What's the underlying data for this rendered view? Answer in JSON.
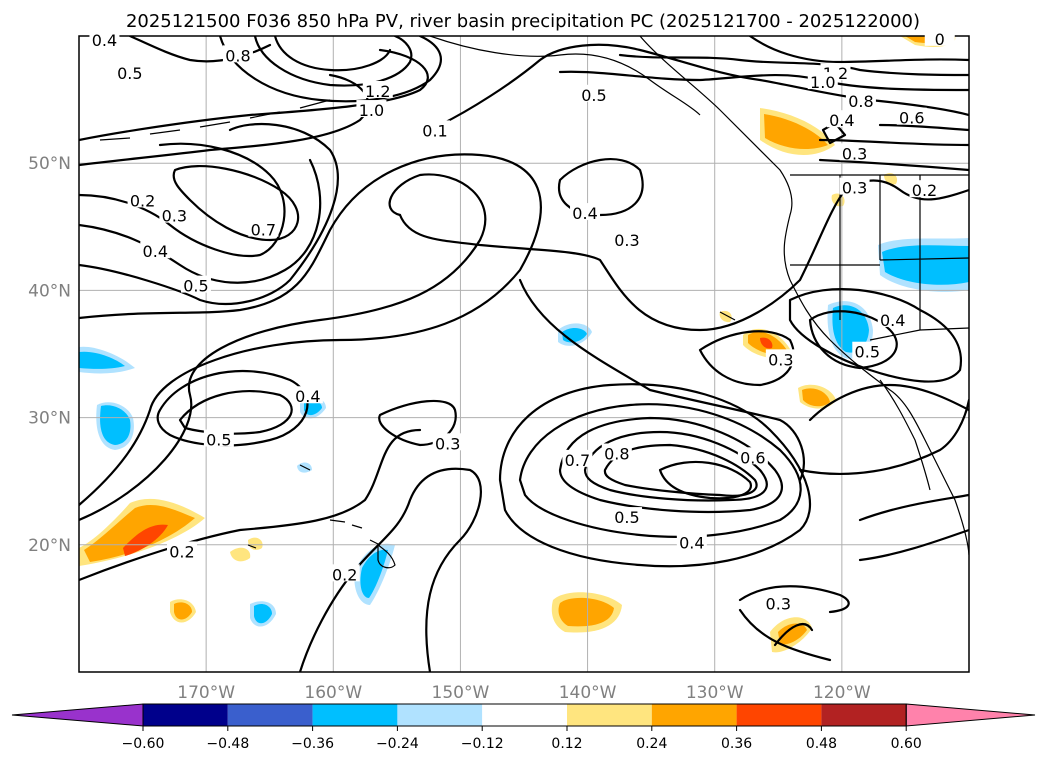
{
  "title": "2025121500 F036 850 hPa PV, river basin precipitation PC (2025121700 - 2025122000)",
  "map": {
    "lon_range": [
      -180,
      -110
    ],
    "lat_range": [
      10,
      60
    ],
    "lat_ticks": [
      {
        "lat": 50,
        "label": "50°N"
      },
      {
        "lat": 40,
        "label": "40°N"
      },
      {
        "lat": 30,
        "label": "30°N"
      },
      {
        "lat": 20,
        "label": "20°N"
      }
    ],
    "lon_ticks": [
      {
        "lon": -170,
        "label": "170°W"
      },
      {
        "lon": -160,
        "label": "160°W"
      },
      {
        "lon": -150,
        "label": "150°W"
      },
      {
        "lon": -140,
        "label": "140°W"
      },
      {
        "lon": -130,
        "label": "130°W"
      },
      {
        "lon": -120,
        "label": "120°W"
      }
    ]
  },
  "contour_labels": [
    {
      "text": "0.4",
      "lon": -178,
      "lat": 59.6
    },
    {
      "text": "0.5",
      "lon": -176,
      "lat": 57.0
    },
    {
      "text": "0.8",
      "lon": -167.5,
      "lat": 58.4
    },
    {
      "text": "1.2",
      "lon": -156.5,
      "lat": 55.6
    },
    {
      "text": "1.0",
      "lon": -157,
      "lat": 54.1
    },
    {
      "text": "0.1",
      "lon": -152,
      "lat": 52.5
    },
    {
      "text": "0.5",
      "lon": -139.5,
      "lat": 55.3
    },
    {
      "text": "1.2",
      "lon": -120.5,
      "lat": 57.0
    },
    {
      "text": "1.0",
      "lon": -121.5,
      "lat": 56.3
    },
    {
      "text": "0.8",
      "lon": -118.5,
      "lat": 54.8
    },
    {
      "text": "0.4",
      "lon": -120,
      "lat": 53.3
    },
    {
      "text": "0.6",
      "lon": -114.5,
      "lat": 53.5
    },
    {
      "text": "0.3",
      "lon": -119,
      "lat": 50.7
    },
    {
      "text": "0.3",
      "lon": -119,
      "lat": 48.0
    },
    {
      "text": "0.2",
      "lon": -113.5,
      "lat": 47.8
    },
    {
      "text": "0.2",
      "lon": -175,
      "lat": 47.0
    },
    {
      "text": "0.3",
      "lon": -172.5,
      "lat": 45.8
    },
    {
      "text": "0.7",
      "lon": -165.5,
      "lat": 44.7
    },
    {
      "text": "0.4",
      "lon": -140.2,
      "lat": 46.0
    },
    {
      "text": "0.3",
      "lon": -136.9,
      "lat": 43.9
    },
    {
      "text": "0.4",
      "lon": -174,
      "lat": 43.0
    },
    {
      "text": "0.5",
      "lon": -170.8,
      "lat": 40.3
    },
    {
      "text": "0.4",
      "lon": -116,
      "lat": 37.6
    },
    {
      "text": "0.5",
      "lon": -118,
      "lat": 35.1
    },
    {
      "text": "0.3",
      "lon": -124.8,
      "lat": 34.5
    },
    {
      "text": "0.4",
      "lon": -162,
      "lat": 31.6
    },
    {
      "text": "0.5",
      "lon": -169,
      "lat": 28.2
    },
    {
      "text": "0.3",
      "lon": -151,
      "lat": 27.9
    },
    {
      "text": "0.7",
      "lon": -140.8,
      "lat": 26.6
    },
    {
      "text": "0.8",
      "lon": -137.7,
      "lat": 27.1
    },
    {
      "text": "0.6",
      "lon": -127,
      "lat": 26.8
    },
    {
      "text": "0.5",
      "lon": -136.9,
      "lat": 22.1
    },
    {
      "text": "0.4",
      "lon": -131.8,
      "lat": 20.1
    },
    {
      "text": "0.2",
      "lon": -171.9,
      "lat": 19.4
    },
    {
      "text": "0.2",
      "lon": -159.1,
      "lat": 17.6
    },
    {
      "text": "0.3",
      "lon": -125,
      "lat": 15.3
    },
    {
      "text": "0",
      "lon": -112.3,
      "lat": 59.7
    }
  ],
  "colorbar": {
    "ticks": [
      "−0.60",
      "−0.48",
      "−0.36",
      "−0.24",
      "−0.12",
      "0.12",
      "0.24",
      "0.36",
      "0.48",
      "0.60"
    ],
    "colors": [
      "#9932cc",
      "#00008b",
      "#3a5fcd",
      "#00bfff",
      "#b0e2ff",
      "#ffffff",
      "#ffe57f",
      "#ffa500",
      "#ff4500",
      "#b22222",
      "#ff82ab"
    ]
  },
  "colors": {
    "grid": "#b0b0b0",
    "axis_label": "#808080",
    "orange": "#ffa500",
    "light_orange": "#ffe57f",
    "red_orange": "#ff4500",
    "deep_sky_blue": "#00bfff",
    "light_blue": "#b0e2ff"
  }
}
